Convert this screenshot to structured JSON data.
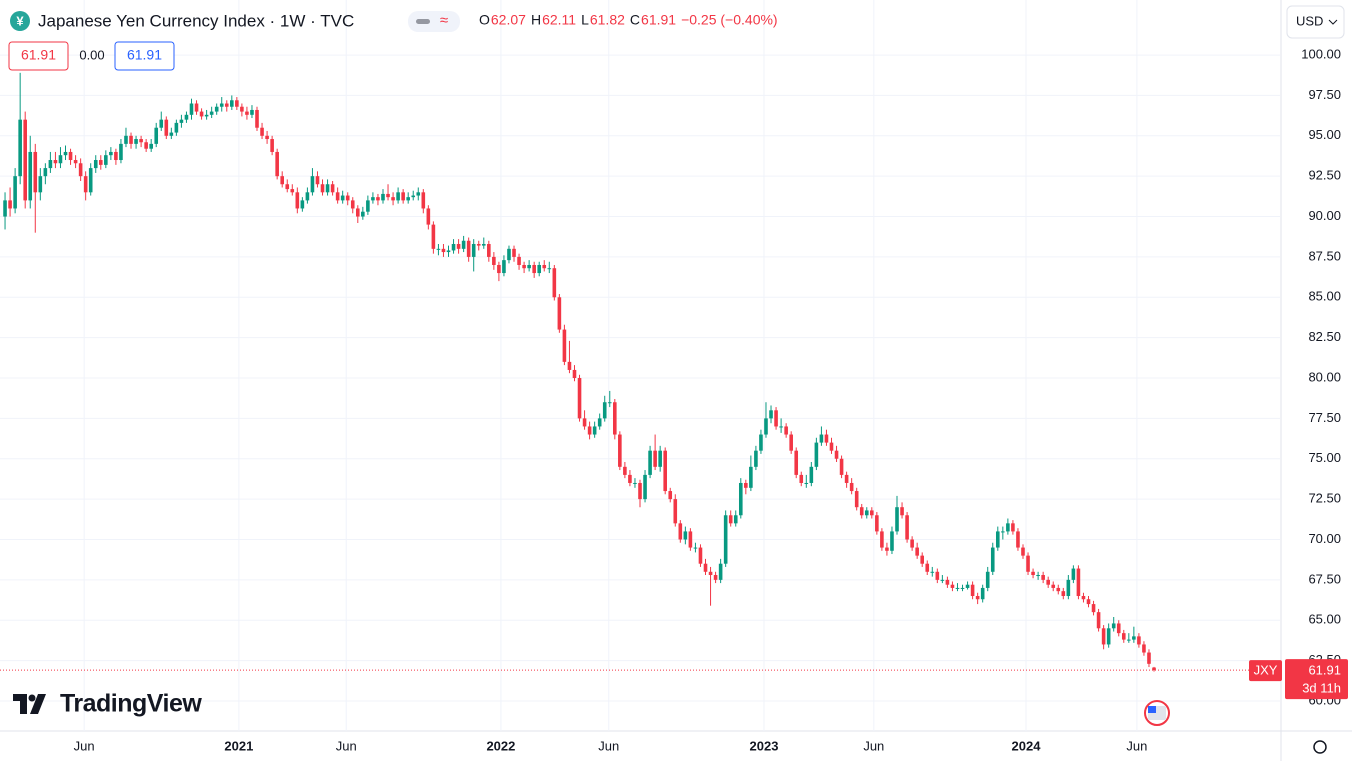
{
  "header": {
    "icon": "¥",
    "title": "Japanese Yen Currency Index · 1W · TVC",
    "ohlc": [
      {
        "key": "O",
        "value": "62.07"
      },
      {
        "key": "H",
        "value": "62.11"
      },
      {
        "key": "L",
        "value": "61.82"
      },
      {
        "key": "C",
        "value": "61.91"
      }
    ],
    "change": "−0.25 (−0.40%)",
    "bid": "61.91",
    "spread": "0.00",
    "ask": "61.91",
    "currency": "USD"
  },
  "brand": "TradingView",
  "chart_data": {
    "type": "candlestick",
    "up_color": "#089981",
    "down_color": "#f23645",
    "grid": true,
    "symbol": "JXY",
    "last_price": "61.91",
    "countdown": "3d 11h",
    "xlim": [
      -1,
      253
    ],
    "xticks": [
      {
        "value": 15.7,
        "label": "Jun"
      },
      {
        "value": 46.4,
        "label": "2021"
      },
      {
        "value": 67.7,
        "label": "Jun"
      },
      {
        "value": 98.4,
        "label": "2022"
      },
      {
        "value": 119.8,
        "label": "Jun"
      },
      {
        "value": 150.6,
        "label": "2023"
      },
      {
        "value": 172.4,
        "label": "Jun"
      },
      {
        "value": 202.6,
        "label": "2024"
      },
      {
        "value": 224.6,
        "label": "Jun"
      }
    ],
    "ylim": [
      58.14,
      103.41
    ],
    "yticks": [
      {
        "value": 60,
        "label": "60.00"
      },
      {
        "value": 62.5,
        "label": "62.50"
      },
      {
        "value": 65,
        "label": "65.00"
      },
      {
        "value": 67.5,
        "label": "67.50"
      },
      {
        "value": 70,
        "label": "70.00"
      },
      {
        "value": 72.5,
        "label": "72.50"
      },
      {
        "value": 75,
        "label": "75.00"
      },
      {
        "value": 77.5,
        "label": "77.50"
      },
      {
        "value": 80,
        "label": "80.00"
      },
      {
        "value": 82.5,
        "label": "82.50"
      },
      {
        "value": 85,
        "label": "85.00"
      },
      {
        "value": 87.5,
        "label": "87.50"
      },
      {
        "value": 90,
        "label": "90.00"
      },
      {
        "value": 92.5,
        "label": "92.50"
      },
      {
        "value": 95,
        "label": "95.00"
      },
      {
        "value": 97.5,
        "label": "97.50"
      },
      {
        "value": 100,
        "label": "100.00"
      }
    ],
    "candles": [
      [
        90,
        91.5,
        89.2,
        91
      ],
      [
        91,
        91.8,
        90,
        90.5
      ],
      [
        90.5,
        93,
        90.2,
        92.5
      ],
      [
        92.5,
        98.9,
        92,
        96
      ],
      [
        96,
        96.5,
        90.5,
        91
      ],
      [
        91,
        95,
        90.5,
        94
      ],
      [
        94,
        94.5,
        89,
        91.5
      ],
      [
        91.5,
        93,
        91,
        92.5
      ],
      [
        92.5,
        93.3,
        92,
        93
      ],
      [
        93,
        94,
        92.7,
        93.5
      ],
      [
        93.5,
        94,
        93,
        93.3
      ],
      [
        93.3,
        94.3,
        93,
        93.8
      ],
      [
        93.8,
        94.4,
        93.5,
        94
      ],
      [
        94,
        94.2,
        93.2,
        93.5
      ],
      [
        93.5,
        93.8,
        93,
        93.3
      ],
      [
        93.3,
        93.6,
        92.2,
        92.5
      ],
      [
        92.5,
        92.8,
        91,
        91.5
      ],
      [
        91.5,
        93.3,
        91.3,
        93
      ],
      [
        93,
        93.8,
        92.7,
        93.5
      ],
      [
        93.5,
        93.8,
        92.9,
        93.2
      ],
      [
        93.2,
        94.1,
        93,
        93.8
      ],
      [
        93.8,
        94.3,
        93.5,
        94
      ],
      [
        94,
        94.2,
        93.2,
        93.5
      ],
      [
        93.5,
        94.8,
        93.3,
        94.5
      ],
      [
        94.5,
        95.5,
        94.3,
        95
      ],
      [
        95,
        95.2,
        94.2,
        94.5
      ],
      [
        94.5,
        95,
        94.2,
        94.8
      ],
      [
        94.8,
        95,
        94.3,
        94.6
      ],
      [
        94.6,
        94.8,
        94,
        94.2
      ],
      [
        94.2,
        94.8,
        94,
        94.5
      ],
      [
        94.5,
        95.8,
        94.3,
        95.5
      ],
      [
        95.5,
        96.5,
        95.3,
        96
      ],
      [
        96,
        96.2,
        94.8,
        95
      ],
      [
        95,
        95.5,
        94.8,
        95.2
      ],
      [
        95.2,
        96,
        95,
        95.8
      ],
      [
        95.8,
        96.3,
        95.5,
        96
      ],
      [
        96,
        96.5,
        95.8,
        96.3
      ],
      [
        96.3,
        97.3,
        96,
        97
      ],
      [
        97,
        97.2,
        96.3,
        96.5
      ],
      [
        96.5,
        96.7,
        96,
        96.2
      ],
      [
        96.2,
        96.6,
        96,
        96.3
      ],
      [
        96.3,
        96.8,
        96.1,
        96.5
      ],
      [
        96.5,
        97,
        96.3,
        96.8
      ],
      [
        96.8,
        97.4,
        96.5,
        97
      ],
      [
        97,
        97.2,
        96.5,
        96.8
      ],
      [
        96.8,
        97.5,
        96.6,
        97.2
      ],
      [
        97.2,
        97.4,
        96.6,
        96.8
      ],
      [
        96.8,
        97,
        96.2,
        96.5
      ],
      [
        96.5,
        96.8,
        96,
        96.3
      ],
      [
        96.3,
        96.9,
        96.1,
        96.6
      ],
      [
        96.6,
        96.8,
        95.3,
        95.5
      ],
      [
        95.5,
        95.8,
        94.8,
        95
      ],
      [
        95,
        95.3,
        94.5,
        94.8
      ],
      [
        94.8,
        95,
        93.8,
        94
      ],
      [
        94,
        94.2,
        92.3,
        92.5
      ],
      [
        92.5,
        92.8,
        91.8,
        92
      ],
      [
        92,
        92.3,
        91.5,
        91.7
      ],
      [
        91.7,
        92,
        91.3,
        91.5
      ],
      [
        91.5,
        91.8,
        90.2,
        90.5
      ],
      [
        90.5,
        91.2,
        90.3,
        91
      ],
      [
        91,
        91.8,
        90.8,
        91.5
      ],
      [
        91.5,
        93,
        91.3,
        92.5
      ],
      [
        92.5,
        92.8,
        91.8,
        92
      ],
      [
        92,
        92.3,
        91.3,
        91.5
      ],
      [
        91.5,
        92.3,
        91.3,
        92
      ],
      [
        92,
        92.2,
        91.3,
        91.5
      ],
      [
        91.5,
        91.8,
        90.8,
        91
      ],
      [
        91,
        91.6,
        90.8,
        91.3
      ],
      [
        91.3,
        91.5,
        90.7,
        91
      ],
      [
        91,
        91.2,
        90.2,
        90.5
      ],
      [
        90.5,
        90.7,
        89.6,
        90
      ],
      [
        90,
        90.6,
        89.8,
        90.3
      ],
      [
        90.3,
        91.3,
        90.1,
        91
      ],
      [
        91,
        91.5,
        90.8,
        91.2
      ],
      [
        91.2,
        91.4,
        90.7,
        91
      ],
      [
        91,
        91.7,
        90.8,
        91.4
      ],
      [
        91.4,
        92,
        91,
        91.2
      ],
      [
        91.2,
        91.5,
        90.7,
        91
      ],
      [
        91,
        91.8,
        90.8,
        91.5
      ],
      [
        91.5,
        91.7,
        90.8,
        91
      ],
      [
        91,
        91.5,
        90.8,
        91.2
      ],
      [
        91.2,
        91.6,
        91,
        91.3
      ],
      [
        91.3,
        91.8,
        91,
        91.5
      ],
      [
        91.5,
        91.7,
        90.2,
        90.5
      ],
      [
        90.5,
        90.7,
        89.2,
        89.5
      ],
      [
        89.5,
        89.7,
        87.7,
        88
      ],
      [
        88,
        88.3,
        87.6,
        88
      ],
      [
        88,
        88.3,
        87.5,
        87.8
      ],
      [
        87.8,
        88.2,
        87.5,
        87.9
      ],
      [
        87.9,
        88.6,
        87.7,
        88.3
      ],
      [
        88.3,
        88.6,
        87.7,
        88
      ],
      [
        88,
        88.8,
        87.8,
        88.5
      ],
      [
        88.5,
        88.7,
        87.2,
        87.5
      ],
      [
        87.5,
        88.6,
        86.6,
        88.3
      ],
      [
        88.3,
        88.5,
        87.9,
        88.2
      ],
      [
        88.2,
        88.7,
        88,
        88.3
      ],
      [
        88.3,
        88.5,
        87.2,
        87.5
      ],
      [
        87.5,
        87.8,
        86.7,
        87
      ],
      [
        87,
        87.2,
        86,
        86.5
      ],
      [
        86.5,
        87.6,
        86.3,
        87.3
      ],
      [
        87.3,
        88.2,
        87.1,
        88
      ],
      [
        88,
        88.2,
        87.2,
        87.5
      ],
      [
        87.5,
        87.7,
        86.7,
        87
      ],
      [
        87,
        87.2,
        86.5,
        86.8
      ],
      [
        86.8,
        87.3,
        86.6,
        87
      ],
      [
        87,
        87.2,
        86.2,
        86.5
      ],
      [
        86.5,
        87.2,
        86.3,
        87
      ],
      [
        87,
        87.3,
        86.6,
        86.8
      ],
      [
        86.8,
        87.2,
        86.5,
        86.8
      ],
      [
        86.8,
        87,
        84.8,
        85
      ],
      [
        85,
        85.2,
        82.8,
        83
      ],
      [
        83,
        83.3,
        80.8,
        81
      ],
      [
        81,
        82.3,
        80.3,
        80.5
      ],
      [
        80.5,
        80.8,
        79.8,
        80
      ],
      [
        80,
        80.2,
        77.3,
        77.5
      ],
      [
        77.5,
        78,
        76.8,
        77
      ],
      [
        77,
        77.3,
        76.2,
        76.5
      ],
      [
        76.5,
        77.3,
        76.3,
        77
      ],
      [
        77,
        77.8,
        76.8,
        77.5
      ],
      [
        77.5,
        78.9,
        77.3,
        78.5
      ],
      [
        78.5,
        79.2,
        78.2,
        78.5
      ],
      [
        78.5,
        78.7,
        76.2,
        76.5
      ],
      [
        76.5,
        76.7,
        74.3,
        74.5
      ],
      [
        74.5,
        74.8,
        73.8,
        74
      ],
      [
        74,
        74.3,
        73.3,
        73.5
      ],
      [
        73.5,
        73.8,
        73.2,
        73.5
      ],
      [
        73.5,
        73.7,
        72,
        72.5
      ],
      [
        72.5,
        74.3,
        72.3,
        74
      ],
      [
        74,
        75.8,
        73.8,
        75.5
      ],
      [
        75.5,
        76.5,
        74.3,
        74.5
      ],
      [
        74.5,
        75.8,
        74.2,
        75.5
      ],
      [
        75.5,
        75.7,
        72.8,
        73
      ],
      [
        73,
        73.2,
        72.3,
        72.5
      ],
      [
        72.5,
        72.8,
        70.8,
        71
      ],
      [
        71,
        71.2,
        69.8,
        70
      ],
      [
        70,
        70.8,
        69.7,
        70.5
      ],
      [
        70.5,
        70.7,
        69.3,
        69.5
      ],
      [
        69.5,
        69.8,
        69.2,
        69.5
      ],
      [
        69.5,
        69.7,
        68.3,
        68.5
      ],
      [
        68.5,
        68.8,
        67.8,
        68
      ],
      [
        68,
        68.3,
        65.9,
        67.8
      ],
      [
        67.8,
        68,
        67.3,
        67.5
      ],
      [
        67.5,
        68.8,
        67.3,
        68.5
      ],
      [
        68.5,
        71.8,
        68.3,
        71.5
      ],
      [
        71.5,
        71.8,
        70.8,
        71
      ],
      [
        71,
        71.8,
        70.8,
        71.5
      ],
      [
        71.5,
        73.8,
        71.3,
        73.5
      ],
      [
        73.5,
        73.7,
        72.8,
        73.2
      ],
      [
        73.2,
        75.2,
        73,
        74.5
      ],
      [
        74.5,
        75.8,
        74.3,
        75.5
      ],
      [
        75.5,
        76.8,
        75.3,
        76.5
      ],
      [
        76.5,
        78.5,
        76.3,
        77.5
      ],
      [
        77.5,
        78.3,
        77.2,
        78
      ],
      [
        78,
        78.2,
        76.8,
        77
      ],
      [
        77,
        77.5,
        76.6,
        77
      ],
      [
        77,
        77.2,
        76.3,
        76.5
      ],
      [
        76.5,
        76.7,
        75.3,
        75.5
      ],
      [
        75.5,
        75.7,
        73.8,
        74
      ],
      [
        74,
        74.2,
        73.3,
        73.5
      ],
      [
        73.5,
        74,
        73.2,
        73.5
      ],
      [
        73.5,
        74.8,
        73.3,
        74.5
      ],
      [
        74.5,
        76.3,
        74.3,
        76
      ],
      [
        76,
        77,
        75.8,
        76.5
      ],
      [
        76.5,
        76.8,
        75.8,
        76
      ],
      [
        76,
        76.3,
        75.3,
        75.5
      ],
      [
        75.5,
        75.8,
        74.8,
        75
      ],
      [
        75,
        75.2,
        73.8,
        74
      ],
      [
        74,
        74.2,
        73.2,
        73.5
      ],
      [
        73.5,
        73.8,
        72.8,
        73
      ],
      [
        73,
        73.2,
        71.8,
        72
      ],
      [
        72,
        72.2,
        71.3,
        71.5
      ],
      [
        71.5,
        72,
        71.3,
        71.8
      ],
      [
        71.8,
        72,
        71.3,
        71.5
      ],
      [
        71.5,
        71.7,
        70.3,
        70.5
      ],
      [
        70.5,
        70.7,
        69.3,
        69.5
      ],
      [
        69.5,
        69.8,
        69,
        69.3
      ],
      [
        69.3,
        70.8,
        69.1,
        70.5
      ],
      [
        70.5,
        72.7,
        70.3,
        72
      ],
      [
        72,
        72.3,
        71.3,
        71.5
      ],
      [
        71.5,
        71.7,
        69.8,
        70
      ],
      [
        70,
        70.2,
        69.3,
        69.5
      ],
      [
        69.5,
        69.8,
        68.8,
        69
      ],
      [
        69,
        69.2,
        68.3,
        68.5
      ],
      [
        68.5,
        68.7,
        67.8,
        68
      ],
      [
        68,
        68.3,
        67.7,
        68
      ],
      [
        68,
        68.2,
        67.3,
        67.5
      ],
      [
        67.5,
        67.8,
        67.3,
        67.5
      ],
      [
        67.5,
        67.7,
        67,
        67.2
      ],
      [
        67.2,
        67.4,
        66.8,
        67
      ],
      [
        67,
        67.3,
        66.8,
        67
      ],
      [
        67,
        67.2,
        66.8,
        67
      ],
      [
        67,
        67.4,
        66.9,
        67.2
      ],
      [
        67.2,
        67.4,
        66.3,
        66.5
      ],
      [
        66.5,
        66.7,
        66,
        66.3
      ],
      [
        66.3,
        67.2,
        66.1,
        67
      ],
      [
        67,
        68.3,
        66.8,
        68
      ],
      [
        68,
        69.8,
        67.8,
        69.5
      ],
      [
        69.5,
        70.8,
        69.3,
        70.5
      ],
      [
        70.5,
        70.8,
        70,
        70.5
      ],
      [
        70.5,
        71.3,
        70.3,
        71
      ],
      [
        71,
        71.2,
        70.3,
        70.5
      ],
      [
        70.5,
        70.7,
        69.3,
        69.5
      ],
      [
        69.5,
        69.7,
        68.8,
        69
      ],
      [
        69,
        69.2,
        67.8,
        68
      ],
      [
        68,
        68.2,
        67.6,
        67.8
      ],
      [
        67.8,
        68,
        67.5,
        67.8
      ],
      [
        67.8,
        68,
        67.3,
        67.5
      ],
      [
        67.5,
        67.7,
        67,
        67.2
      ],
      [
        67.2,
        67.4,
        66.8,
        67
      ],
      [
        67,
        67.2,
        66.6,
        66.8
      ],
      [
        66.8,
        67,
        66.3,
        66.5
      ],
      [
        66.5,
        67.8,
        66.3,
        67.5
      ],
      [
        67.5,
        68.4,
        67.3,
        68.2
      ],
      [
        68.2,
        68.4,
        66.3,
        66.5
      ],
      [
        66.5,
        66.7,
        66.1,
        66.3
      ],
      [
        66.3,
        66.5,
        65.8,
        66
      ],
      [
        66,
        66.2,
        65.3,
        65.5
      ],
      [
        65.5,
        65.7,
        64.3,
        64.5
      ],
      [
        64.5,
        64.7,
        63.2,
        63.5
      ],
      [
        63.5,
        64.8,
        63.3,
        64.5
      ],
      [
        64.5,
        65.2,
        64.3,
        64.8
      ],
      [
        64.8,
        65,
        64,
        64.2
      ],
      [
        64.2,
        64.4,
        63.6,
        63.8
      ],
      [
        63.8,
        64.2,
        63.6,
        63.8
      ],
      [
        63.8,
        64.6,
        63.6,
        64
      ],
      [
        64,
        64.2,
        63.3,
        63.5
      ],
      [
        63.5,
        63.7,
        62.8,
        63
      ],
      [
        63,
        63.2,
        62.1,
        62.3
      ],
      [
        62.07,
        62.11,
        61.82,
        61.91
      ]
    ]
  }
}
